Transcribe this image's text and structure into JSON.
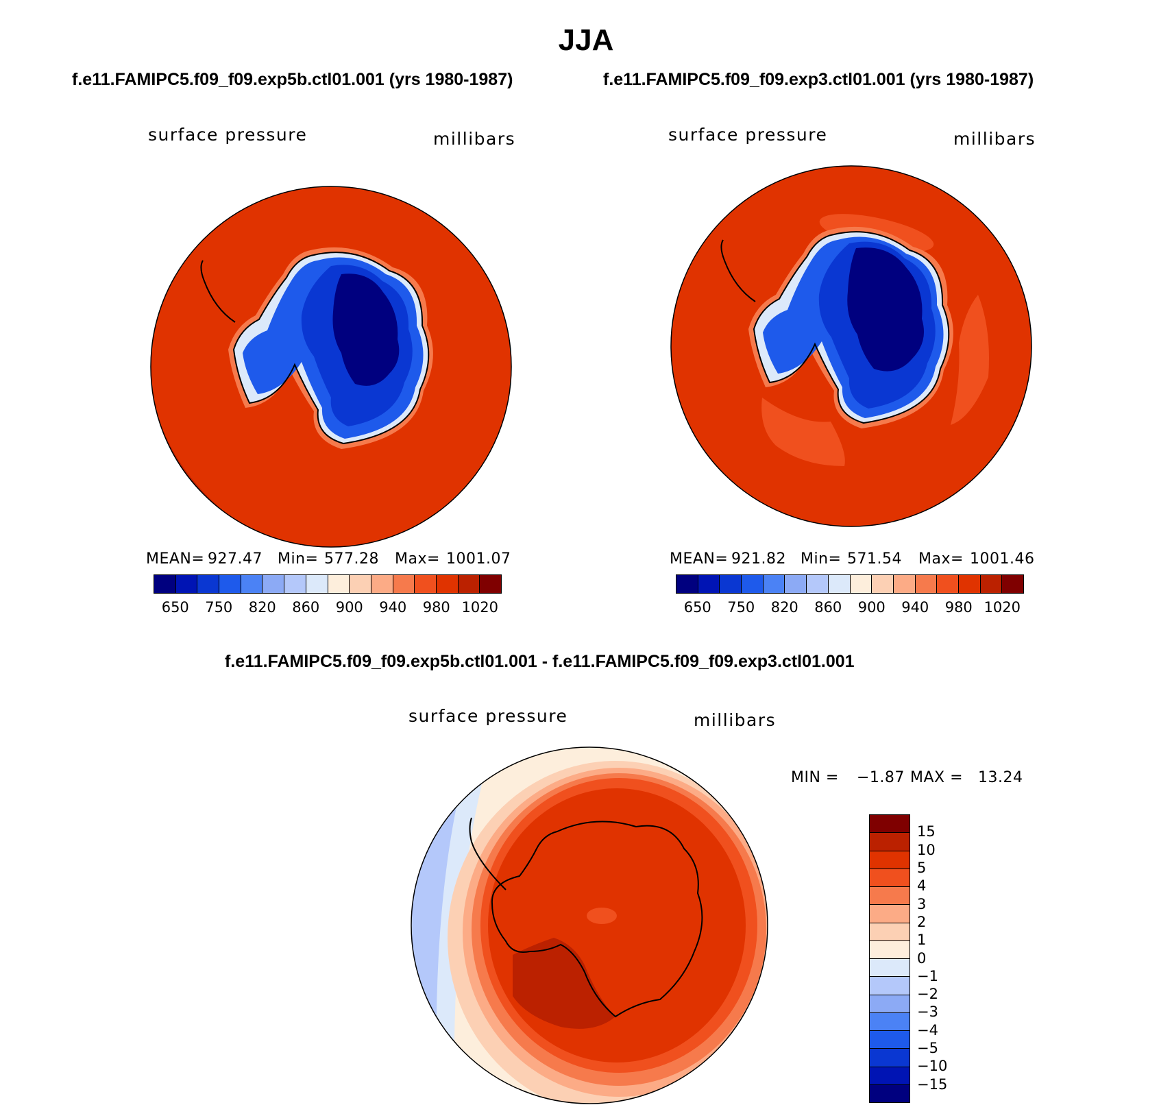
{
  "title": "JJA",
  "panels": [
    {
      "case_title": "f.e11.FAMIPC5.f09_f09.exp5b.ctl01.001 (yrs 1980-1987)",
      "variable": "surface pressure",
      "units": "millibars",
      "stats": {
        "mean_label": "MEAN=",
        "mean": "927.47",
        "min_label": "Min=",
        "min": "577.28",
        "max_label": "Max=",
        "max": "1001.07"
      }
    },
    {
      "case_title": "f.e11.FAMIPC5.f09_f09.exp3.ctl01.001 (yrs 1980-1987)",
      "variable": "surface pressure",
      "units": "millibars",
      "stats": {
        "mean_label": "MEAN=",
        "mean": "921.82",
        "min_label": "Min=",
        "min": "571.54",
        "max_label": "Max=",
        "max": "1001.46"
      }
    }
  ],
  "colorbar": {
    "colors": [
      "#00007f",
      "#0014b4",
      "#0a37d2",
      "#1e5aeb",
      "#4b82f5",
      "#8caaf5",
      "#b4c8fa",
      "#dce9fa",
      "#fdeedc",
      "#fcd0b4",
      "#fcab86",
      "#f67a4c",
      "#f0501e",
      "#e03300",
      "#bb2100",
      "#7f0000"
    ],
    "tick_labels": [
      "650",
      "750",
      "820",
      "860",
      "900",
      "940",
      "980",
      "1020"
    ]
  },
  "diff": {
    "title": "f.e11.FAMIPC5.f09_f09.exp5b.ctl01.001 - f.e11.FAMIPC5.f09_f09.exp3.ctl01.001",
    "variable": "surface pressure",
    "units": "millibars",
    "min_label": "MIN =",
    "min": "−1.87",
    "max_label": "MAX =",
    "max": "13.24",
    "colorbar": {
      "colors_top_to_bottom": [
        "#7f0000",
        "#bb2100",
        "#e03300",
        "#f0501e",
        "#f67a4c",
        "#fcab86",
        "#fcd0b4",
        "#fdeedc",
        "#dce9fa",
        "#b4c8fa",
        "#8caaf5",
        "#4b82f5",
        "#1e5aeb",
        "#0a37d2",
        "#0014b4",
        "#00007f"
      ],
      "tick_labels": [
        "15",
        "10",
        "5",
        "4",
        "3",
        "2",
        "1",
        "0",
        "−1",
        "−2",
        "−3",
        "−4",
        "−5",
        "−10",
        "−15"
      ]
    }
  },
  "colors": {
    "ocean_high": "#e03300",
    "ocean_mid": "#f0501e",
    "ocean_edge": "#bb2100",
    "low": "#0014b4"
  }
}
